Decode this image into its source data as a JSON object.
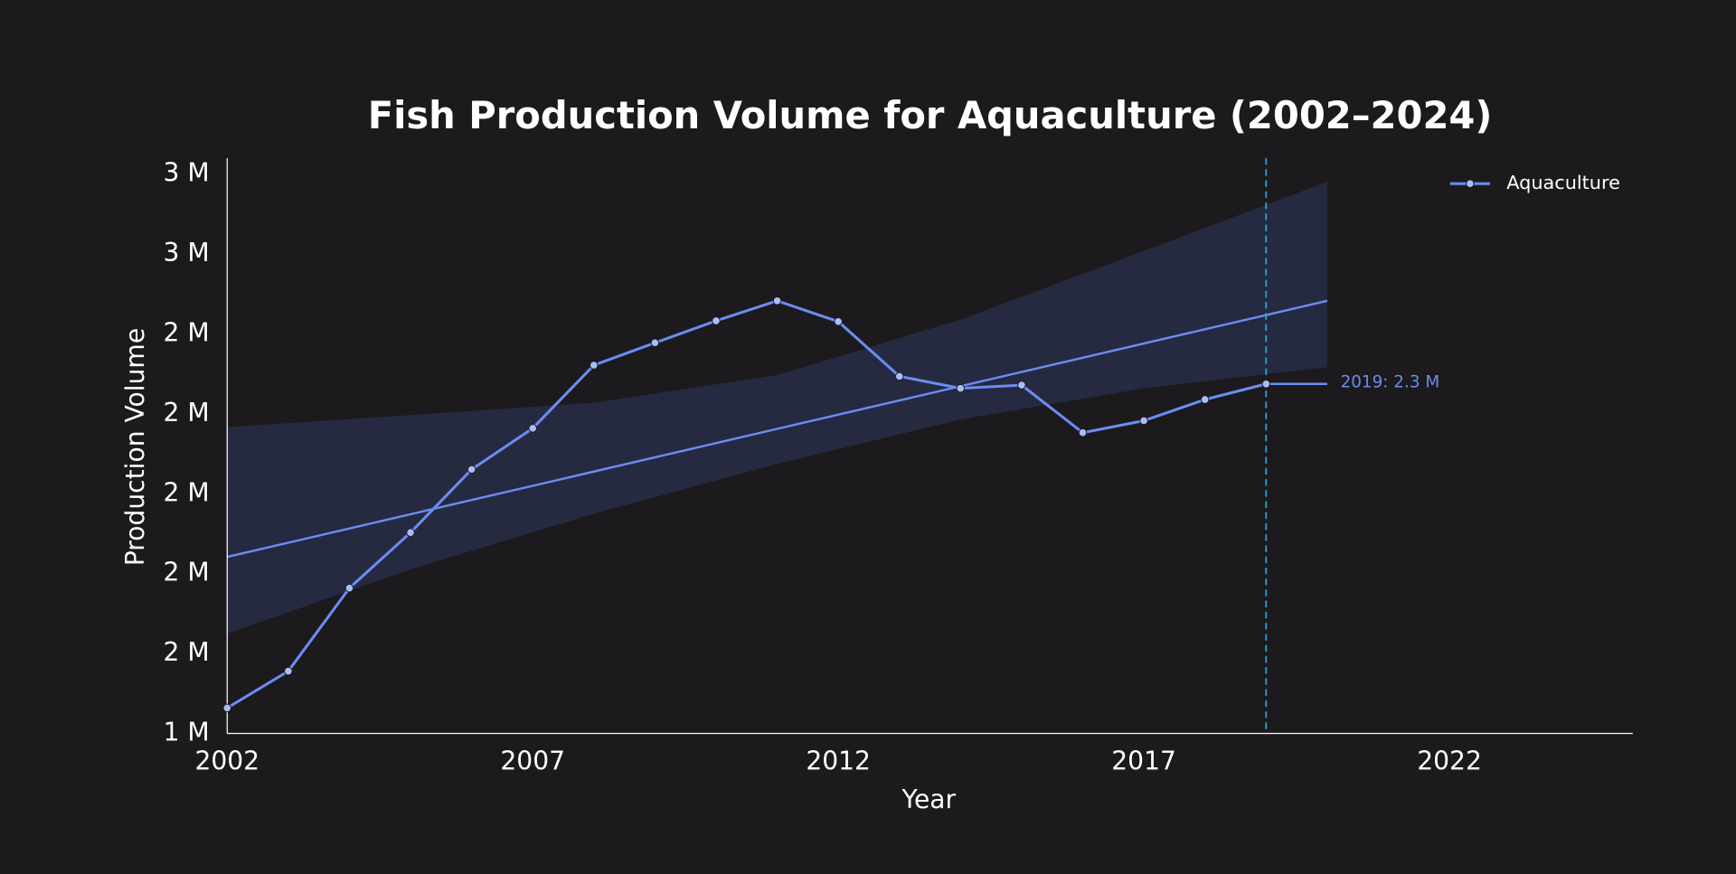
{
  "chart_data": {
    "type": "line",
    "title": "Fish Production Volume for Aquaculture (2002–2024)",
    "x_label": "Year",
    "y_label": "Production Volume",
    "x": [
      2002,
      2003,
      2004,
      2005,
      2006,
      2007,
      2008,
      2009,
      2010,
      2011,
      2012,
      2013,
      2014,
      2015,
      2016,
      2017,
      2018,
      2019
    ],
    "series": [
      {
        "name": "Aquaculture",
        "color": "#6b8cf0",
        "values": [
          1.464,
          1.556,
          1.764,
          1.903,
          2.061,
          2.164,
          2.322,
          2.378,
          2.433,
          2.483,
          2.431,
          2.294,
          2.264,
          2.272,
          2.153,
          2.183,
          2.236,
          2.275
        ]
      }
    ],
    "trend": {
      "x": [
        2002,
        2020
      ],
      "values": [
        1.842,
        2.483
      ],
      "color": "#6b8cf0"
    },
    "band": {
      "x": [
        2002,
        2005,
        2008,
        2011,
        2014,
        2017,
        2020
      ],
      "upper": [
        2.167,
        2.197,
        2.228,
        2.297,
        2.436,
        2.608,
        2.781
      ],
      "lower": [
        1.65,
        1.811,
        1.95,
        2.075,
        2.186,
        2.264,
        2.317
      ],
      "color": "#252a40"
    },
    "vline": 2019,
    "vline_color": "#29a3d6",
    "annotation": {
      "text": "2019: 2.3 M",
      "x": 2019,
      "y": 2.275,
      "end_x": 2020
    },
    "xlim": [
      2002,
      2025
    ],
    "xticks": [
      2002,
      2007,
      2012,
      2017,
      2022
    ],
    "ylim": [
      1.4,
      2.84
    ],
    "yticks": [
      {
        "value": 1.4,
        "label": "1 M"
      },
      {
        "value": 1.6,
        "label": "2 M"
      },
      {
        "value": 1.8,
        "label": "2 M"
      },
      {
        "value": 2.0,
        "label": "2 M"
      },
      {
        "value": 2.2,
        "label": "2 M"
      },
      {
        "value": 2.4,
        "label": "2 M"
      },
      {
        "value": 2.6,
        "label": "3 M"
      },
      {
        "value": 2.8,
        "label": "3 M"
      }
    ],
    "grid": false,
    "legend": "upper right"
  }
}
